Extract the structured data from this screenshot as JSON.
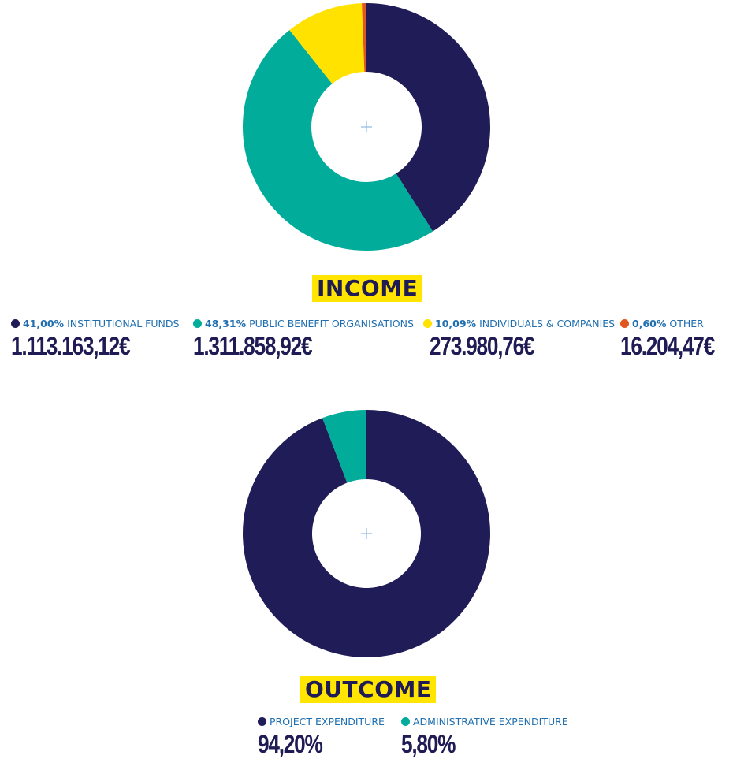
{
  "chart_data": [
    {
      "type": "pie",
      "title": "INCOME",
      "slices": [
        {
          "label": "INSTITUTIONAL FUNDS",
          "percent_label": "41,00%",
          "value": 41.0,
          "amount": "1.113.163,12€",
          "color": "#201c57"
        },
        {
          "label": "PUBLIC BENEFIT ORGANISATIONS",
          "percent_label": "48,31%",
          "value": 48.31,
          "amount": "1.311.858,92€",
          "color": "#02ac9a"
        },
        {
          "label": "INDIVIDUALS & COMPANIES",
          "percent_label": "10,09%",
          "value": 10.09,
          "amount": "273.980,76€",
          "color": "#ffe200"
        },
        {
          "label": "OTHER",
          "percent_label": "0,60%",
          "value": 0.6,
          "amount": "16.204,47€",
          "color": "#e2561f"
        }
      ]
    },
    {
      "type": "pie",
      "title": "OUTCOME",
      "slices": [
        {
          "label": "PROJECT EXPENDITURE",
          "value": 94.2,
          "amount": "94,20%",
          "color": "#201c57"
        },
        {
          "label": "ADMINISTRATIVE EXPENDITURE",
          "value": 5.8,
          "amount": "5,80%",
          "color": "#02ac9a"
        }
      ]
    }
  ]
}
